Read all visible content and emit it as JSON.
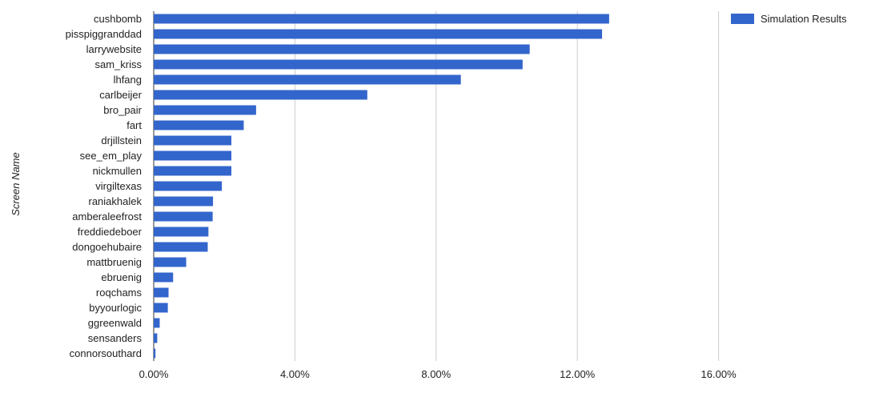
{
  "chart_data": {
    "type": "bar",
    "orientation": "horizontal",
    "ylabel": "Screen Name",
    "xlabel": "",
    "xlim": [
      0,
      20
    ],
    "x_ticks": [
      0,
      4,
      8,
      12,
      16
    ],
    "x_tick_labels": [
      "0.00%",
      "4.00%",
      "8.00%",
      "12.00%",
      "16.00%"
    ],
    "grid": true,
    "legend_position": "top-right",
    "categories": [
      "cushbomb",
      "pisspiggranddad",
      "larrywebsite",
      "sam_kriss",
      "lhfang",
      "carlbeijer",
      "bro_pair",
      "fart",
      "drjillstein",
      "see_em_play",
      "nickmullen",
      "virgiltexas",
      "raniakhalek",
      "amberaleefrost",
      "freddiedeboer",
      "dongoehubaire",
      "mattbruenig",
      "ebruenig",
      "roqchams",
      "byyourlogic",
      "ggreenwald",
      "sensanders",
      "connorsouthard"
    ],
    "series": [
      {
        "name": "Simulation Results",
        "color": "#3366cc",
        "values": [
          12.9,
          12.7,
          10.65,
          10.45,
          8.7,
          6.05,
          2.9,
          2.55,
          2.2,
          2.2,
          2.2,
          1.93,
          1.68,
          1.67,
          1.55,
          1.53,
          0.92,
          0.55,
          0.42,
          0.4,
          0.17,
          0.1,
          0.05
        ]
      }
    ]
  }
}
